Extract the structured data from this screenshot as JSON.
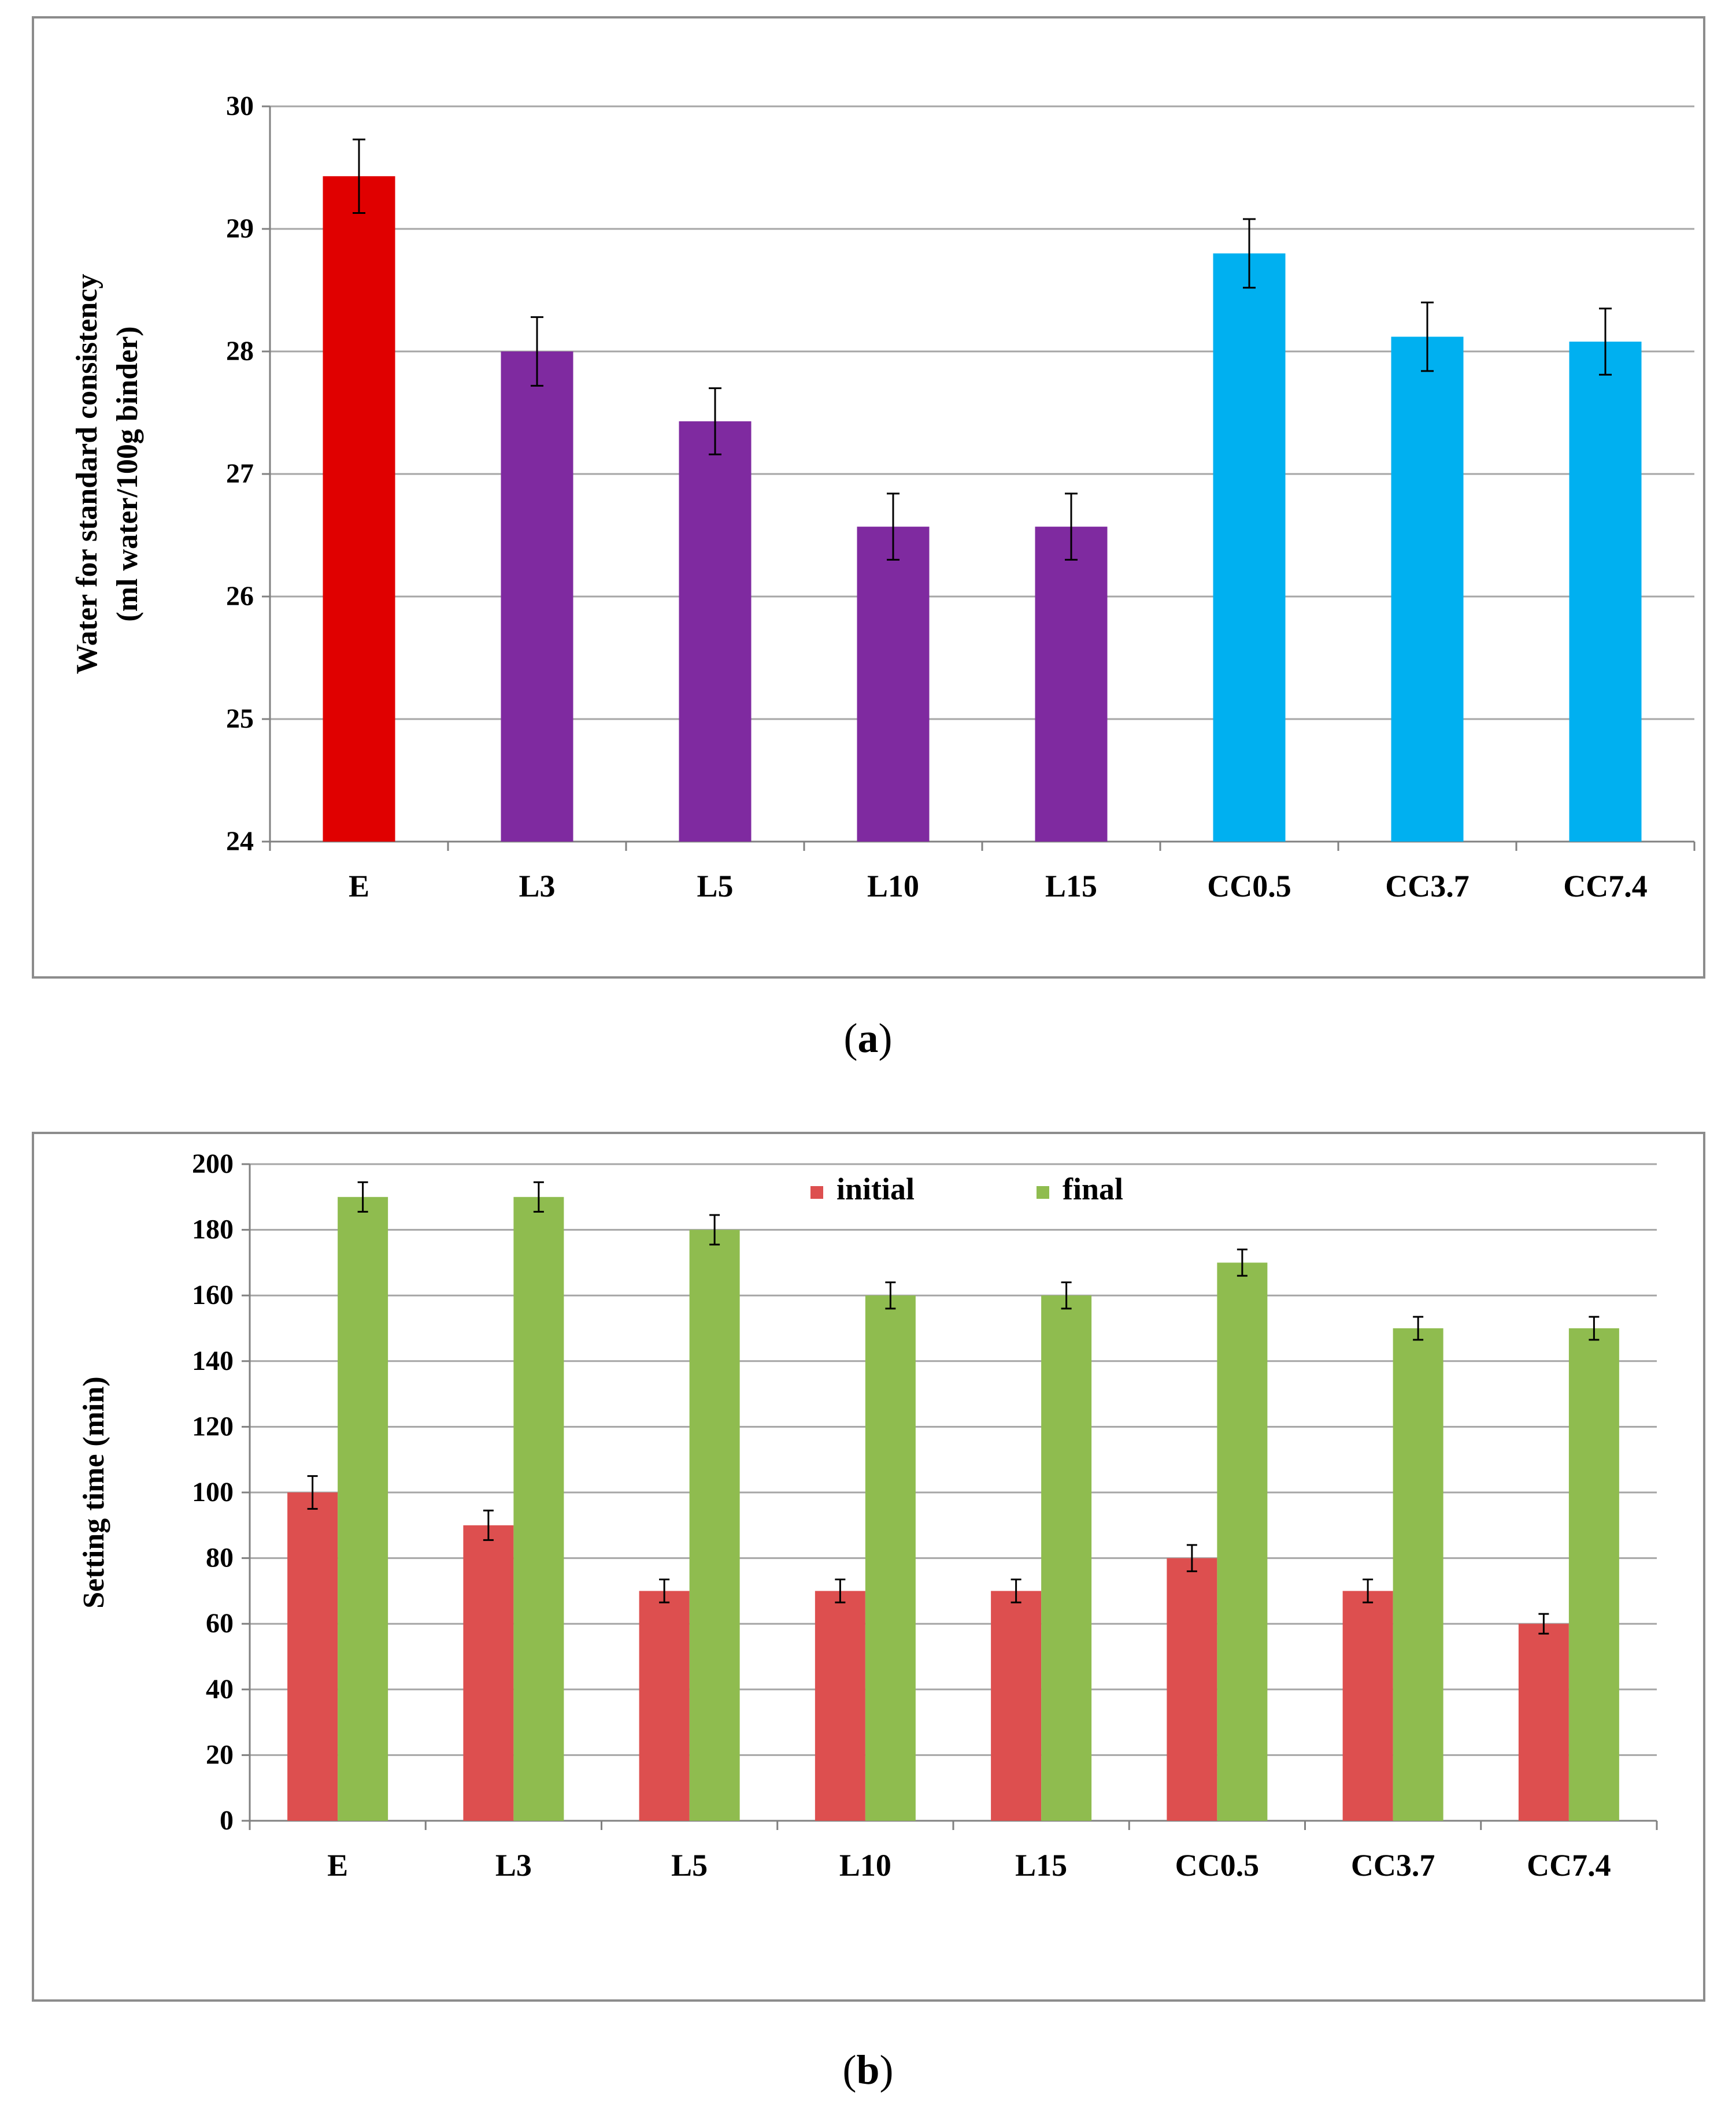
{
  "chart_data": [
    {
      "type": "bar",
      "title": "",
      "xlabel": "",
      "ylabel": "Water for standard consistency",
      "ylabel2": "(ml water/100g binder)",
      "ylim": [
        24,
        30
      ],
      "yticks": [
        24,
        25,
        26,
        27,
        28,
        29,
        30
      ],
      "categories": [
        "E",
        "L3",
        "L5",
        "L10",
        "L15",
        "CC0.5",
        "CC3.7",
        "CC7.4"
      ],
      "values": [
        29.43,
        28.0,
        27.43,
        26.57,
        26.57,
        28.8,
        28.12,
        28.08
      ],
      "errors": [
        0.3,
        0.28,
        0.27,
        0.27,
        0.27,
        0.28,
        0.28,
        0.27
      ],
      "colors": [
        "#e00000",
        "#7f2aa0",
        "#7f2aa0",
        "#7f2aa0",
        "#7f2aa0",
        "#00b0f0",
        "#00b0f0",
        "#00b0f0"
      ],
      "grid": true,
      "caption_open": "(",
      "caption_letter": "a",
      "caption_close": ")"
    },
    {
      "type": "bar",
      "title": "",
      "xlabel": "",
      "ylabel": "Setting time (min)",
      "ylim": [
        0,
        200
      ],
      "yticks": [
        0,
        20,
        40,
        60,
        80,
        100,
        120,
        140,
        160,
        180,
        200
      ],
      "categories": [
        "E",
        "L3",
        "L5",
        "L10",
        "L15",
        "CC0.5",
        "CC3.7",
        "CC7.4"
      ],
      "series": [
        {
          "name": "initial",
          "color": "#dd4f4f",
          "values": [
            100,
            90,
            70,
            70,
            70,
            80,
            70,
            60
          ],
          "errors": [
            5,
            4.5,
            3.5,
            3.5,
            3.5,
            4,
            3.5,
            3
          ]
        },
        {
          "name": "final",
          "color": "#8fbc4f",
          "values": [
            190,
            190,
            180,
            160,
            160,
            170,
            150,
            150
          ],
          "errors": [
            4.5,
            4.5,
            4.5,
            4,
            4,
            4,
            3.5,
            3.5
          ]
        }
      ],
      "legend": "top-center",
      "grid": true,
      "caption_open": "(",
      "caption_letter": "b",
      "caption_close": ")"
    }
  ]
}
